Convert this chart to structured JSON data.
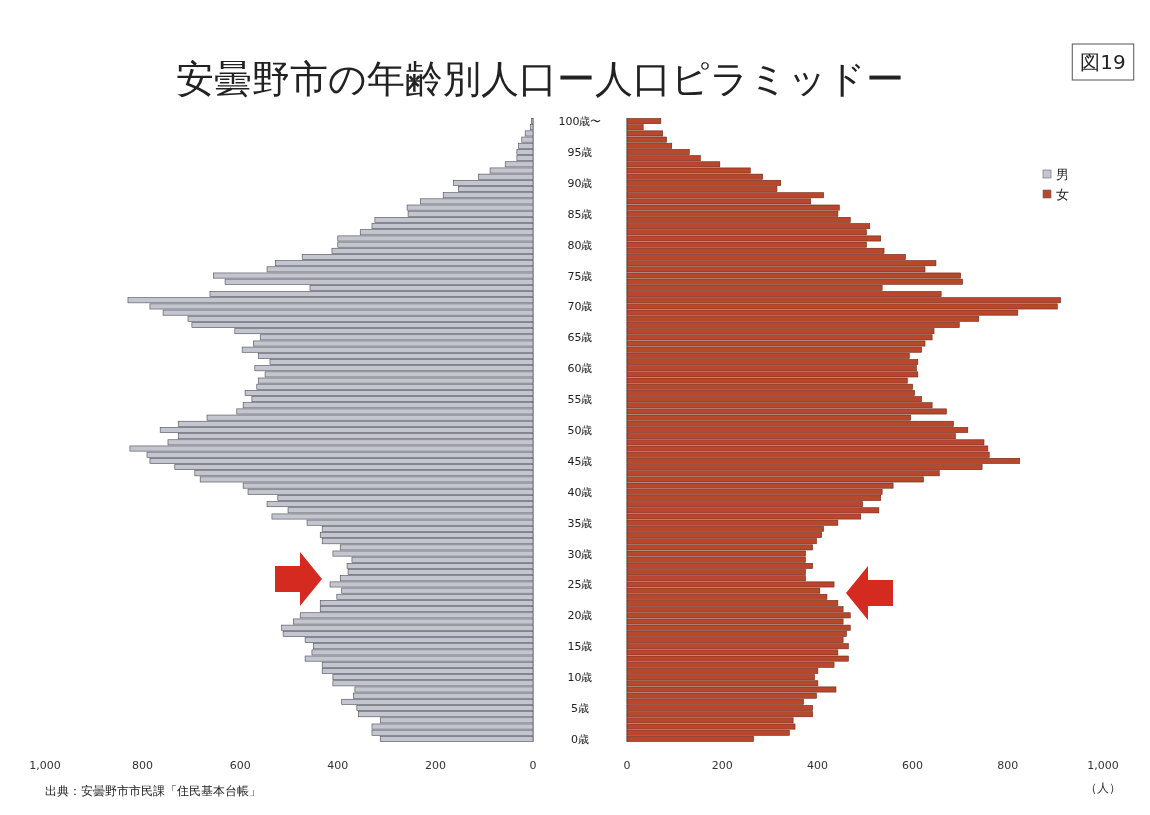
{
  "chart_data": [
    {
      "type": "bar",
      "orientation": "horizontal",
      "legend": "top right",
      "title": "安曇野市の年齢別人口ー人口ピラミッドー",
      "categories": [
        "100歳〜",
        null,
        null,
        null,
        null,
        "95歳",
        null,
        null,
        null,
        null,
        "90歳",
        null,
        null,
        null,
        null,
        "85歳",
        null,
        null,
        null,
        null,
        "80歳",
        null,
        null,
        null,
        null,
        "75歳",
        null,
        null,
        null,
        null,
        "70歳",
        null,
        null,
        null,
        null,
        "65歳",
        null,
        null,
        null,
        null,
        "60歳",
        null,
        null,
        null,
        null,
        "55歳",
        null,
        null,
        null,
        null,
        "50歳",
        null,
        null,
        null,
        null,
        "45歳",
        null,
        null,
        null,
        null,
        "40歳",
        null,
        null,
        null,
        null,
        "35歳",
        null,
        null,
        null,
        null,
        "30歳",
        null,
        null,
        null,
        null,
        "25歳",
        null,
        null,
        null,
        null,
        "20歳",
        null,
        null,
        null,
        null,
        "15歳",
        null,
        null,
        null,
        null,
        "10歳",
        null,
        null,
        null,
        null,
        "5歳",
        null,
        null,
        null,
        null,
        "0歳"
      ],
      "series": [
        {
          "name": "男",
          "color": "#c4c6cf",
          "values": [
            3,
            5,
            16,
            23,
            30,
            33,
            33,
            57,
            88,
            112,
            163,
            153,
            184,
            231,
            258,
            256,
            324,
            330,
            354,
            400,
            400,
            412,
            473,
            528,
            545,
            655,
            631,
            457,
            662,
            830,
            785,
            758,
            707,
            699,
            611,
            559,
            573,
            596,
            563,
            539,
            570,
            549,
            563,
            566,
            590,
            576,
            594,
            607,
            668,
            727,
            764,
            727,
            748,
            826,
            791,
            785,
            734,
            693,
            682,
            594,
            584,
            523,
            545,
            502,
            535,
            463,
            432,
            436,
            432,
            395,
            410,
            371,
            381,
            379,
            395,
            416,
            392,
            402,
            436,
            436,
            477,
            491,
            515,
            512,
            467,
            450,
            453,
            467,
            432,
            432,
            410,
            410,
            365,
            368,
            392,
            361,
            358,
            313,
            330,
            330,
            313
          ]
        }
      ],
      "xlim": [
        1000,
        0
      ],
      "xticks": [
        {
          "value": 1000,
          "label": "1,000"
        },
        800,
        600,
        400,
        200,
        0
      ],
      "annotations": [
        "出典：安曇野市市民課「住民基本台帳」"
      ]
    },
    {
      "type": "bar",
      "orientation": "horizontal",
      "xlabel": "（人）",
      "legend": "top right",
      "tick_labels": "x",
      "categories": [
        null,
        null,
        null,
        null,
        null,
        null,
        null,
        null,
        null,
        null,
        null,
        null,
        null,
        null,
        null,
        null,
        null,
        null,
        null,
        null,
        null,
        null,
        null,
        null,
        null,
        null,
        null,
        null,
        null,
        null,
        null,
        null,
        null,
        null,
        null,
        null,
        null,
        null,
        null,
        null,
        null,
        null,
        null,
        null,
        null,
        null,
        null,
        null,
        null,
        null,
        null,
        null,
        null,
        null,
        null,
        null,
        null,
        null,
        null,
        null,
        null,
        null,
        null,
        null,
        null,
        null,
        null,
        null,
        null,
        null,
        null,
        null,
        null,
        null,
        null,
        null,
        null,
        null,
        null,
        null,
        null,
        null,
        null,
        null,
        null,
        null,
        null,
        null,
        null,
        null,
        null,
        null,
        null,
        null,
        null,
        null,
        null,
        null,
        null,
        null,
        null
      ],
      "series": [
        {
          "name": "女",
          "color": "#b8472c",
          "values": [
            71,
            34,
            75,
            83,
            94,
            131,
            154,
            195,
            259,
            285,
            323,
            315,
            413,
            386,
            446,
            443,
            469,
            510,
            503,
            533,
            503,
            540,
            585,
            649,
            626,
            701,
            705,
            536,
            660,
            911,
            904,
            821,
            739,
            698,
            645,
            641,
            626,
            619,
            593,
            611,
            608,
            611,
            589,
            600,
            604,
            619,
            641,
            671,
            596,
            686,
            716,
            690,
            750,
            758,
            761,
            825,
            746,
            656,
            623,
            559,
            536,
            533,
            495,
            529,
            491,
            443,
            413,
            409,
            398,
            390,
            375,
            375,
            390,
            375,
            375,
            435,
            405,
            420,
            443,
            454,
            469,
            454,
            469,
            461,
            454,
            465,
            443,
            465,
            435,
            401,
            394,
            401,
            439,
            398,
            371,
            390,
            390,
            349,
            353,
            341,
            266
          ]
        }
      ],
      "xlim": [
        0,
        1000
      ],
      "xticks": [
        0,
        200,
        400,
        600,
        800,
        {
          "value": 1000,
          "label": "1,000"
        }
      ],
      "annotations": [
        "図19"
      ]
    }
  ]
}
